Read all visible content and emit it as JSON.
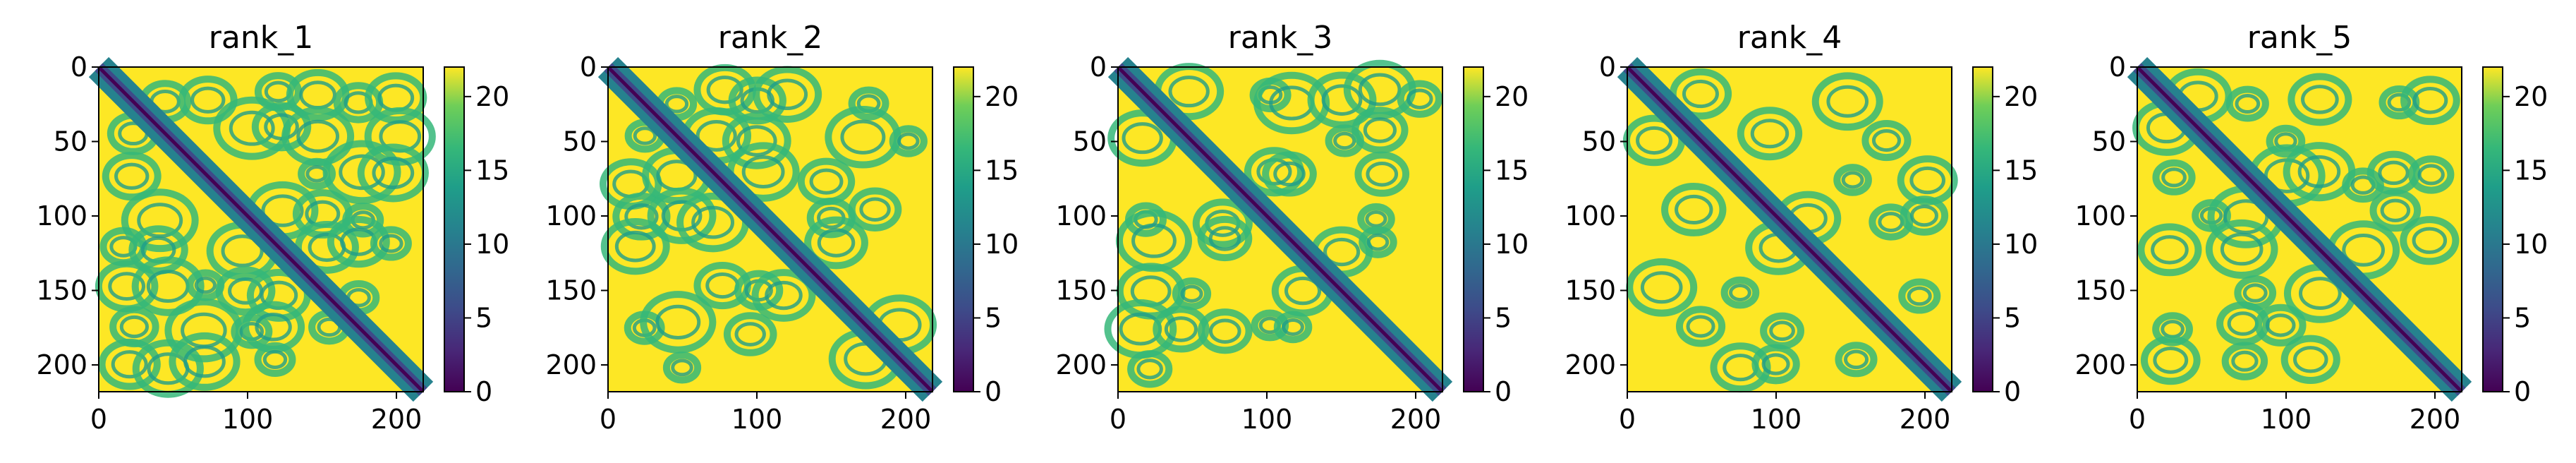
{
  "figure": {
    "panels": [
      {
        "title": "rank_1"
      },
      {
        "title": "rank_2"
      },
      {
        "title": "rank_3"
      },
      {
        "title": "rank_4"
      },
      {
        "title": "rank_5"
      }
    ]
  },
  "chart_data": [
    {
      "type": "heatmap",
      "title": "rank_1",
      "xlabel": "",
      "ylabel": "",
      "xlim": [
        0,
        218
      ],
      "ylim": [
        218,
        0
      ],
      "x_ticks": [
        0,
        100,
        200
      ],
      "y_ticks": [
        0,
        50,
        100,
        150,
        200
      ],
      "colorbar": {
        "min": 0,
        "max": 22,
        "ticks": [
          0,
          5,
          10,
          15,
          20
        ],
        "colormap": "viridis"
      },
      "matrix_size": 218,
      "variant": 0
    },
    {
      "type": "heatmap",
      "title": "rank_2",
      "xlabel": "",
      "ylabel": "",
      "xlim": [
        0,
        218
      ],
      "ylim": [
        218,
        0
      ],
      "x_ticks": [
        0,
        100,
        200
      ],
      "y_ticks": [
        0,
        50,
        100,
        150,
        200
      ],
      "colorbar": {
        "min": 0,
        "max": 22,
        "ticks": [
          0,
          5,
          10,
          15,
          20
        ],
        "colormap": "viridis"
      },
      "matrix_size": 218,
      "variant": 1
    },
    {
      "type": "heatmap",
      "title": "rank_3",
      "xlabel": "",
      "ylabel": "",
      "xlim": [
        0,
        218
      ],
      "ylim": [
        218,
        0
      ],
      "x_ticks": [
        0,
        100,
        200
      ],
      "y_ticks": [
        0,
        50,
        100,
        150,
        200
      ],
      "colorbar": {
        "min": 0,
        "max": 22,
        "ticks": [
          0,
          5,
          10,
          15,
          20
        ],
        "colormap": "viridis"
      },
      "matrix_size": 218,
      "variant": 2
    },
    {
      "type": "heatmap",
      "title": "rank_4",
      "xlabel": "",
      "ylabel": "",
      "xlim": [
        0,
        218
      ],
      "ylim": [
        218,
        0
      ],
      "x_ticks": [
        0,
        100,
        200
      ],
      "y_ticks": [
        0,
        50,
        100,
        150,
        200
      ],
      "colorbar": {
        "min": 0,
        "max": 22,
        "ticks": [
          0,
          5,
          10,
          15,
          20
        ],
        "colormap": "viridis"
      },
      "matrix_size": 218,
      "variant": 3
    },
    {
      "type": "heatmap",
      "title": "rank_5",
      "xlabel": "",
      "ylabel": "",
      "xlim": [
        0,
        218
      ],
      "ylim": [
        218,
        0
      ],
      "x_ticks": [
        0,
        100,
        200
      ],
      "y_ticks": [
        0,
        50,
        100,
        150,
        200
      ],
      "colorbar": {
        "min": 0,
        "max": 22,
        "ticks": [
          0,
          5,
          10,
          15,
          20
        ],
        "colormap": "viridis"
      },
      "matrix_size": 218,
      "variant": 4
    }
  ]
}
